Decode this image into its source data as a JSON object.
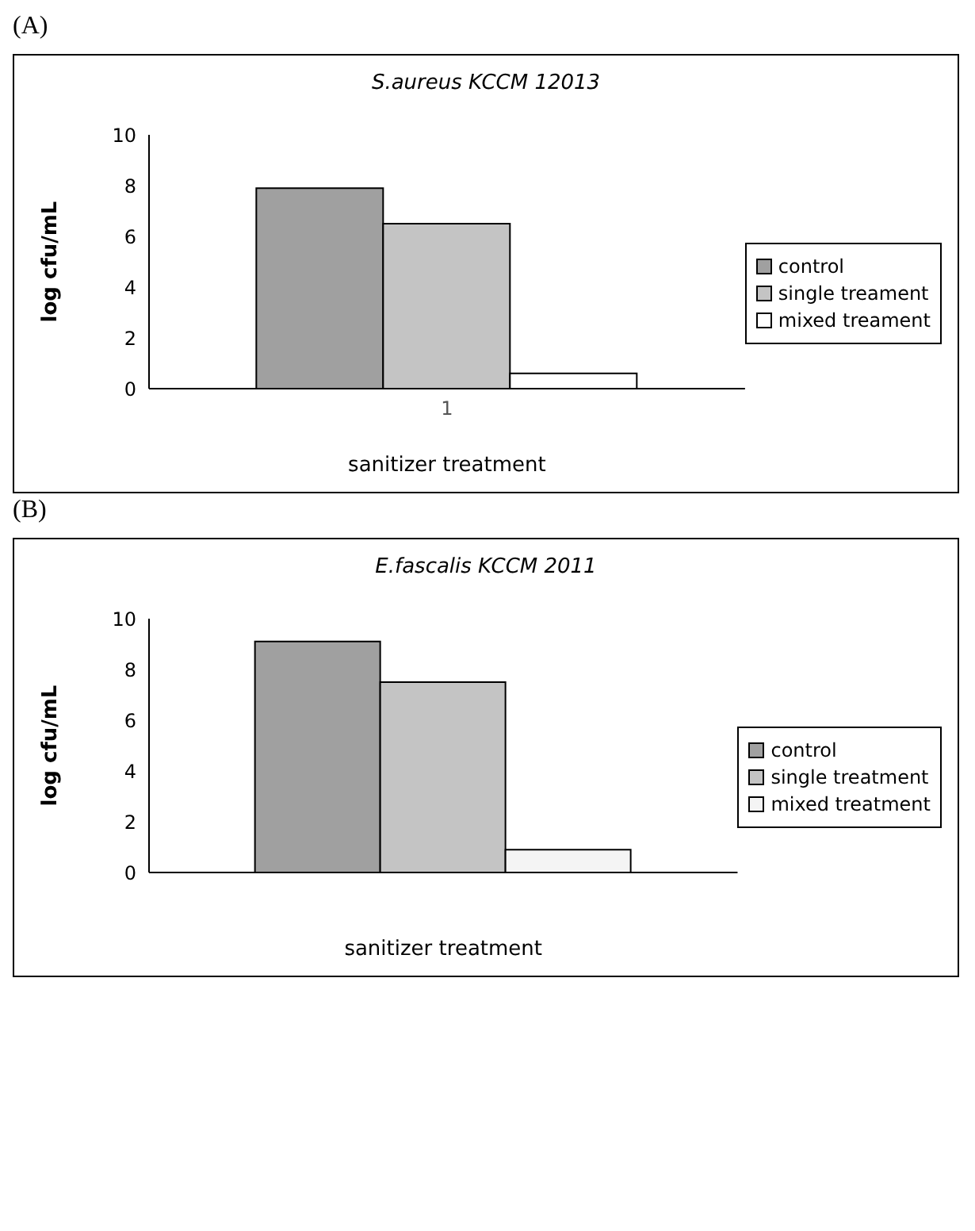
{
  "chart_data": [
    {
      "type": "bar",
      "title": "S.aureus KCCM 12013",
      "annotations": [
        "(A)"
      ],
      "xlabel": "sanitizer treatment",
      "ylabel": "log cfu/mL",
      "categories": [
        "1"
      ],
      "series": [
        {
          "name": "control",
          "color": "#a0a0a0",
          "values": [
            7.9
          ]
        },
        {
          "name": "single treament",
          "color": "#c4c4c4",
          "values": [
            6.5
          ]
        },
        {
          "name": "mixed treament",
          "color": "#ffffff",
          "values": [
            0.6
          ]
        }
      ],
      "ylim": [
        0,
        10
      ],
      "yticks": [
        0,
        2,
        4,
        6,
        8,
        10
      ],
      "grid": false,
      "legend": "right"
    },
    {
      "type": "bar",
      "title": "E.fascalis KCCM 2011",
      "annotations": [
        "(B)"
      ],
      "xlabel": "sanitizer treatment",
      "ylabel": "log cfu/mL",
      "categories": [
        null
      ],
      "series": [
        {
          "name": "control",
          "color": "#a0a0a0",
          "values": [
            9.1
          ]
        },
        {
          "name": "single treatment",
          "color": "#c4c4c4",
          "values": [
            7.5
          ]
        },
        {
          "name": "mixed treatment",
          "color": "#f4f4f4",
          "values": [
            0.9
          ]
        }
      ],
      "ylim": [
        0,
        10
      ],
      "yticks": [
        0,
        2,
        4,
        6,
        8,
        10
      ],
      "grid": false,
      "legend": "right"
    }
  ]
}
